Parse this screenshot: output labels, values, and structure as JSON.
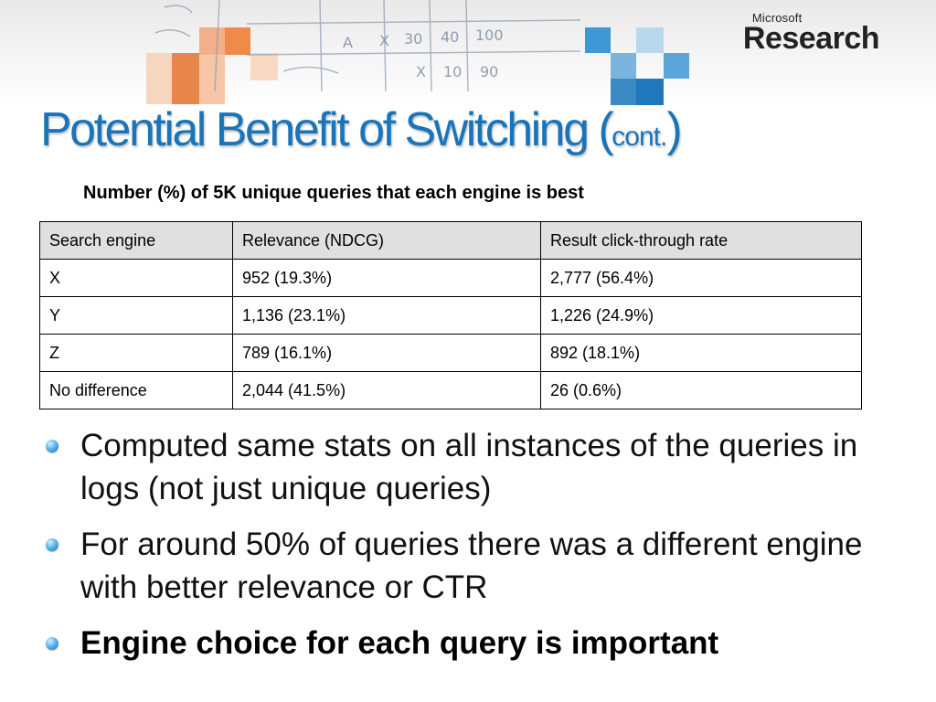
{
  "logo": {
    "company": "Microsoft",
    "division": "Research"
  },
  "banner_scribble": [
    "A",
    "X",
    "30",
    "40",
    "100",
    "X",
    "10",
    "90"
  ],
  "title": {
    "main": "Potential Benefit of Switching (",
    "small": "cont.",
    "close": ")"
  },
  "caption": "Number (%) of 5K unique queries that each engine is best",
  "table": {
    "headers": [
      "Search engine",
      "Relevance (NDCG)",
      "Result click-through rate"
    ],
    "rows": [
      [
        "X",
        "952 (19.3%)",
        "2,777 (56.4%)"
      ],
      [
        "Y",
        "1,136 (23.1%)",
        "1,226 (24.9%)"
      ],
      [
        "Z",
        "789 (16.1%)",
        "892 (18.1%)"
      ],
      [
        "No difference",
        "2,044 (41.5%)",
        "26 (0.6%)"
      ]
    ]
  },
  "bullets": [
    "Computed same stats on all instances of the queries in logs (not just unique queries)",
    "For around 50% of queries there was a different engine with better relevance or CTR",
    "Engine choice for each query is important"
  ],
  "colors": {
    "title": "#1a74b9",
    "accent_orange": "#ef8a4a",
    "accent_blue": "#3f97d3",
    "header_bg": "#e0e0e0"
  }
}
